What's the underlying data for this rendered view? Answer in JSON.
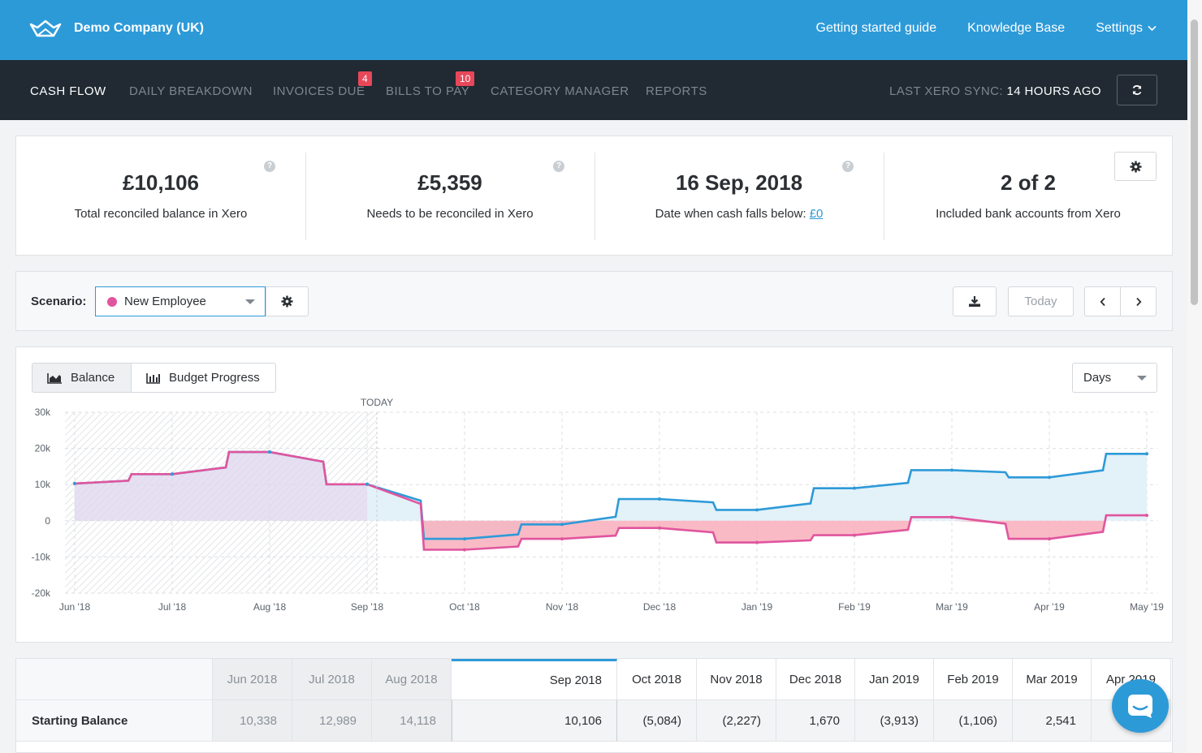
{
  "header": {
    "company": "Demo Company (UK)",
    "links": [
      "Getting started guide",
      "Knowledge Base",
      "Settings"
    ]
  },
  "nav": {
    "items": [
      "CASH FLOW",
      "DAILY BREAKDOWN",
      "INVOICES DUE",
      "BILLS TO PAY",
      "CATEGORY MANAGER",
      "REPORTS"
    ],
    "invoices_badge": "4",
    "bills_badge": "10",
    "sync_label": "LAST XERO SYNC:",
    "sync_value": "14 HOURS AGO"
  },
  "stats": [
    {
      "value": "£10,106",
      "label": "Total reconciled balance in Xero"
    },
    {
      "value": "£5,359",
      "label": "Needs to be reconciled in Xero"
    },
    {
      "value": "16 Sep, 2018",
      "label": "Date when cash falls below:",
      "link": "£0"
    },
    {
      "value": "2 of 2",
      "label": "Included bank accounts from Xero"
    }
  ],
  "scenario": {
    "label": "Scenario:",
    "selected": "New Employee",
    "today_label": "Today"
  },
  "chart_controls": {
    "balance_tab": "Balance",
    "budget_tab": "Budget Progress",
    "granularity": "Days",
    "today_marker": "TODAY"
  },
  "chart_data": {
    "type": "area",
    "ylim": [
      -20000,
      30000
    ],
    "yticks": [
      "30k",
      "20k",
      "10k",
      "0",
      "-10k",
      "-20k"
    ],
    "xticks": [
      "Jun '18",
      "Jul '18",
      "Aug '18",
      "Sep '18",
      "Oct '18",
      "Nov '18",
      "Dec '18",
      "Jan '19",
      "Feb '19",
      "Mar '19",
      "Apr '19",
      "May '19"
    ],
    "today": "Sep '18",
    "colors": {
      "scenario": "#e0559e",
      "baseline": "#2d9ad8",
      "negative_fill": "#f7a9b6",
      "past_fill": "#ddd6ee",
      "future_fill": "#e3f1f8"
    },
    "series": [
      {
        "name": "New Employee",
        "x": [
          "Jun '18",
          "Jul '18",
          "Aug '18",
          "Sep '18",
          "Oct '18",
          "Nov '18",
          "Dec '18",
          "Jan '19",
          "Feb '19",
          "Mar '19",
          "Apr '19",
          "May '19"
        ],
        "values": [
          10300,
          12900,
          19000,
          10100,
          -8000,
          -5000,
          -2000,
          -6000,
          -4000,
          1000,
          -5000,
          1500
        ]
      },
      {
        "x": [
          "Jun '18",
          "Jul '18",
          "Aug '18",
          "Sep '18",
          "Oct '18",
          "Nov '18",
          "Dec '18",
          "Jan '19",
          "Feb '19",
          "Mar '19",
          "Apr '19",
          "May '19"
        ],
        "values": [
          10300,
          12900,
          19000,
          10100,
          -5000,
          -1000,
          6000,
          3000,
          9000,
          14000,
          12000,
          18500
        ]
      }
    ]
  },
  "table": {
    "columns": [
      "Jun 2018",
      "Jul 2018",
      "Aug 2018",
      "Sep 2018",
      "Oct 2018",
      "Nov 2018",
      "Dec 2018",
      "Jan 2019",
      "Feb 2019",
      "Mar 2019",
      "Apr 2019"
    ],
    "row_label": "Starting Balance",
    "values": [
      "10,338",
      "12,989",
      "14,118",
      "10,106",
      "(5,084)",
      "(2,227)",
      "1,670",
      "(3,913)",
      "(1,106)",
      "2,541",
      "("
    ]
  }
}
